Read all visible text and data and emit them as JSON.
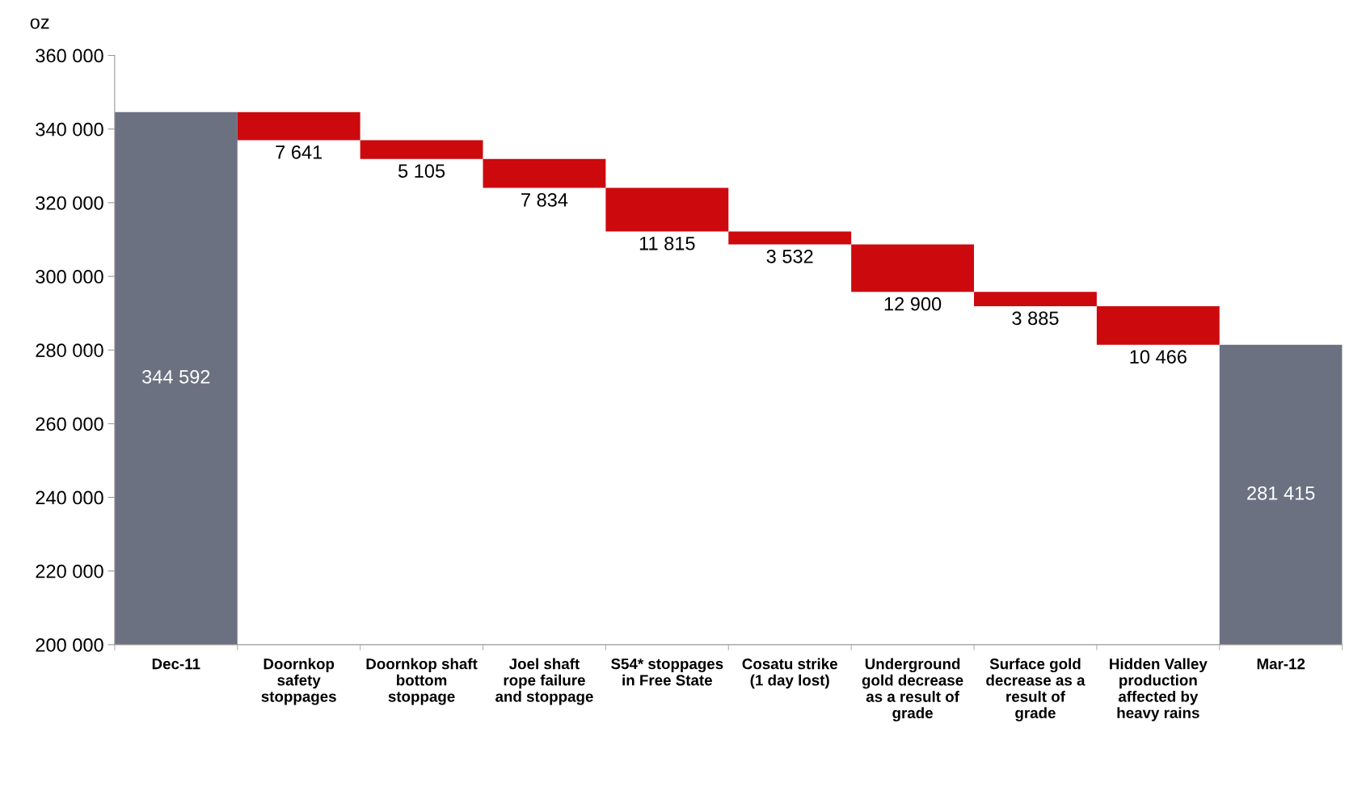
{
  "chart_data": {
    "type": "bar",
    "ylabel": "oz",
    "categories": [
      "Dec-11",
      "Doornkop safety stoppages",
      "Doornkop shaft bottom stoppage",
      "Joel shaft rope failure and stoppage",
      "S54* stoppages in Free State",
      "Cosatu strike (1 day lost)",
      "Underground gold decrease as a result of grade",
      "Surface gold decrease as a result of grade",
      "Hidden Valley production affected by heavy rains",
      "Mar-12"
    ],
    "values": [
      344592,
      7641,
      5105,
      7834,
      11815,
      3532,
      12900,
      3885,
      10466,
      281415
    ],
    "base": [
      0,
      336951,
      331846,
      324012,
      312197,
      308665,
      295765,
      291880,
      281414,
      0
    ],
    "colors": [
      "#6b7181",
      "#cc0a0e",
      "#cc0a0e",
      "#cc0a0e",
      "#cc0a0e",
      "#cc0a0e",
      "#cc0a0e",
      "#cc0a0e",
      "#cc0a0e",
      "#6b7181"
    ],
    "value_labels": [
      "344 592",
      "7 641",
      "5 105",
      "7 834",
      "11 815",
      "3 532",
      "12 900",
      "3 885",
      "10 466",
      "281 415"
    ],
    "ylim": [
      200000,
      360000
    ],
    "yticks": [
      {
        "value": 200000,
        "label": "200 000"
      },
      {
        "value": 220000,
        "label": "220 000"
      },
      {
        "value": 240000,
        "label": "240 000"
      },
      {
        "value": 260000,
        "label": "260 000"
      },
      {
        "value": 280000,
        "label": "280 000"
      },
      {
        "value": 300000,
        "label": "300 000"
      },
      {
        "value": 320000,
        "label": "320 000"
      },
      {
        "value": 340000,
        "label": "340 000"
      },
      {
        "value": 360000,
        "label": "360 000"
      }
    ],
    "grid": false,
    "legend": false
  }
}
